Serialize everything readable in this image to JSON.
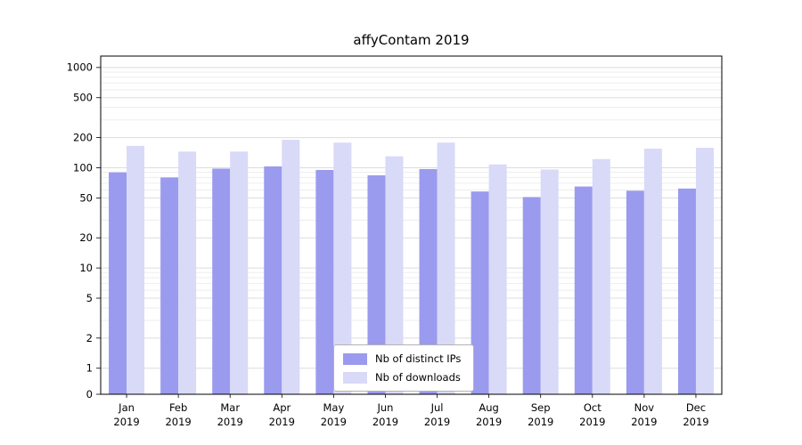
{
  "title": "affyContam 2019",
  "chart_data": {
    "type": "bar",
    "title": "affyContam 2019",
    "yscale": "log",
    "grid": true,
    "legend_position": "lower center",
    "xlabel": "",
    "ylabel": "",
    "ylim": [
      0,
      1300
    ],
    "yticks": [
      0,
      1,
      2,
      5,
      10,
      20,
      50,
      100,
      200,
      500,
      1000
    ],
    "categories": [
      "Jan",
      "Feb",
      "Mar",
      "Apr",
      "May",
      "Jun",
      "Jul",
      "Aug",
      "Sep",
      "Oct",
      "Nov",
      "Dec"
    ],
    "year_label": "2019",
    "series": [
      {
        "name": "Nb of distinct IPs",
        "key": "distinct-ips",
        "color": "#9a9aee",
        "values": [
          90,
          80,
          98,
          103,
          95,
          84,
          97,
          58,
          51,
          65,
          59,
          62
        ]
      },
      {
        "name": "Nb of downloads",
        "key": "downloads",
        "color": "#d9d9f8",
        "values": [
          165,
          145,
          145,
          190,
          178,
          130,
          178,
          108,
          96,
          122,
          155,
          158
        ]
      }
    ]
  }
}
